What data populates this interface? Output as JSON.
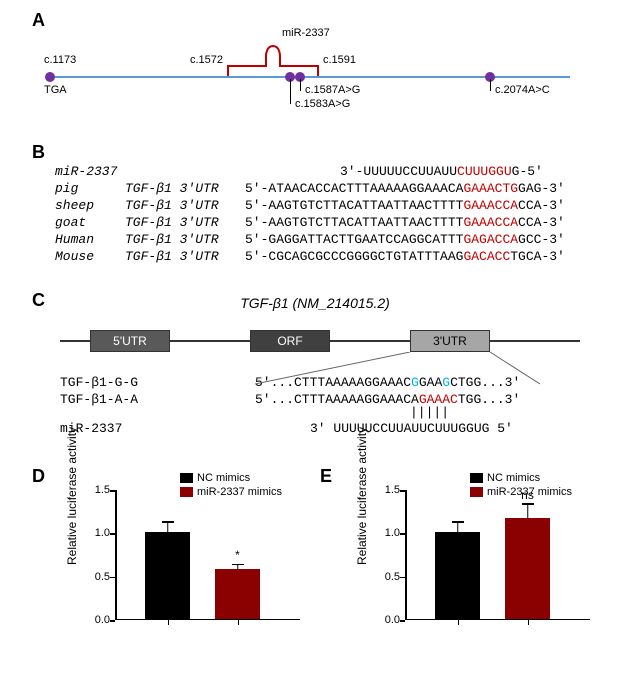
{
  "panels": {
    "A": "A",
    "B": "B",
    "C": "C",
    "D": "D",
    "E": "E"
  },
  "panelA": {
    "leftPos": "c.1173",
    "leftLabel": "TGA",
    "mirLabel": "miR-2337",
    "mirStart": "c.1572",
    "mirEnd": "c.1591",
    "snp1": "c.1587A>G",
    "snp2": "c.1583A>G",
    "rightSnp": "c.2074A>C"
  },
  "panelB": {
    "mirName": "miR-2337",
    "mirSeq_pre": "3'-UUUUUCCUUAUU",
    "mirSeq_hl": "CUUUGGU",
    "mirSeq_post": "G-5'",
    "rows": [
      {
        "sp": "pig",
        "gene": "TGF-β1 3'UTR",
        "pre": "5'-ATAACACCACTTTAAAAAGGAAACA",
        "hl": "GAAACTG",
        "post": "GAG-3'"
      },
      {
        "sp": "sheep",
        "gene": "TGF-β1 3'UTR",
        "pre": "5'-AAGTGTCTTACATTAATTAACTTTT",
        "hl": "GAAACCA",
        "post": "CCA-3'"
      },
      {
        "sp": "goat",
        "gene": "TGF-β1 3'UTR",
        "pre": "5'-AAGTGTCTTACATTAATTAACTTTT",
        "hl": "GAAACCA",
        "post": "CCA-3'"
      },
      {
        "sp": "Human",
        "gene": "TGF-β1 3'UTR",
        "pre": "5'-GAGGATTACTTGAATCCAGGCATTT",
        "hl": "GAGACCA",
        "post": "GCC-3'"
      },
      {
        "sp": "Mouse",
        "gene": "TGF-β1 3'UTR",
        "pre": "5'-CGCAGCGCCCGGGGCTGTATTTAAG",
        "hl_pre": "GAC",
        "hl_mid_black": "",
        "hl": "ACC",
        "post": "TGCA-3'",
        "mouse": true
      }
    ]
  },
  "panelC": {
    "title": "TGF-β1 (NM_214015.2)",
    "box1": "5'UTR",
    "box2": "ORF",
    "box3": "3'UTR",
    "rows": [
      {
        "label": "TGF-β1-G-G",
        "pre": "5'...CTTTAAAAAGGAAAC",
        "r1": "G",
        "mid": "GAA",
        "r2": "G",
        "post": "CTGG...3'",
        "gg": true
      },
      {
        "label": "TGF-β1-A-A",
        "pre": "5'...CTTTAAAAAGGAAACA",
        "hl": "GAAAC",
        "post": "TGG...3'"
      }
    ],
    "mir": {
      "label": "miR-2337",
      "seq": "3' UUUUUCCUUAUUCUUUGGUG 5'"
    },
    "pairing": "|||||"
  },
  "chartD": {
    "ylabel": "Relative luciferase activity",
    "ylim": [
      0,
      1.5
    ],
    "ytick": 0.5,
    "bars": [
      {
        "label": "NC mimics",
        "value": 1.0,
        "error": 0.12,
        "color": "#000000"
      },
      {
        "label": "miR-2337 mimics",
        "value": 0.58,
        "error": 0.05,
        "color": "#8b0000",
        "sig": "*"
      }
    ]
  },
  "chartE": {
    "ylabel": "Relative luciferase activity",
    "ylim": [
      0,
      1.5
    ],
    "ytick": 0.5,
    "bars": [
      {
        "label": "NC mimics",
        "value": 1.0,
        "error": 0.12,
        "color": "#000000"
      },
      {
        "label": "miR-2337 mimics",
        "value": 1.17,
        "error": 0.16,
        "color": "#8b0000",
        "sig": "ns"
      }
    ]
  }
}
